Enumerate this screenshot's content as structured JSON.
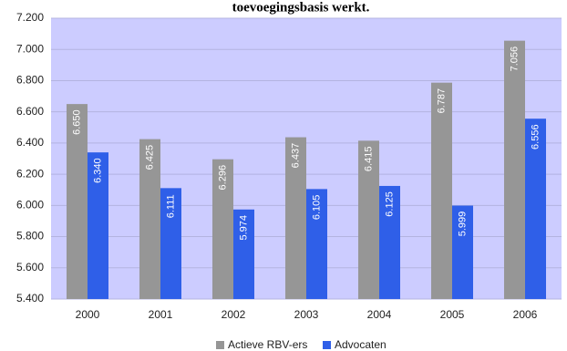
{
  "chart_data": {
    "type": "bar",
    "title": "toevoegingsbasis werkt.",
    "categories": [
      "2000",
      "2001",
      "2002",
      "2003",
      "2004",
      "2005",
      "2006"
    ],
    "series": [
      {
        "name": "Actieve RBV-ers",
        "values": [
          6650,
          6425,
          6296,
          6437,
          6415,
          6787,
          7056
        ],
        "labels": [
          "6.650",
          "6.425",
          "6.296",
          "6.437",
          "6.415",
          "6.787",
          "7.056"
        ],
        "color": "#969696"
      },
      {
        "name": "Advocaten",
        "values": [
          6340,
          6111,
          5974,
          6105,
          6125,
          5999,
          6556
        ],
        "labels": [
          "6.340",
          "6.111",
          "5.974",
          "6.105",
          "6.125",
          "5.999",
          "6.556"
        ],
        "color": "#2f5fe8"
      }
    ],
    "ylim": [
      5400,
      7200
    ],
    "yticks": [
      5400,
      5600,
      5800,
      6000,
      6200,
      6400,
      6600,
      6800,
      7000,
      7200
    ],
    "ytick_labels": [
      "5.400",
      "5.600",
      "5.800",
      "6.000",
      "6.200",
      "6.400",
      "6.600",
      "6.800",
      "7.000",
      "7.200"
    ],
    "grid": true,
    "plot_background": "#ccccff",
    "legend_position": "bottom",
    "xlabel": "",
    "ylabel": ""
  }
}
